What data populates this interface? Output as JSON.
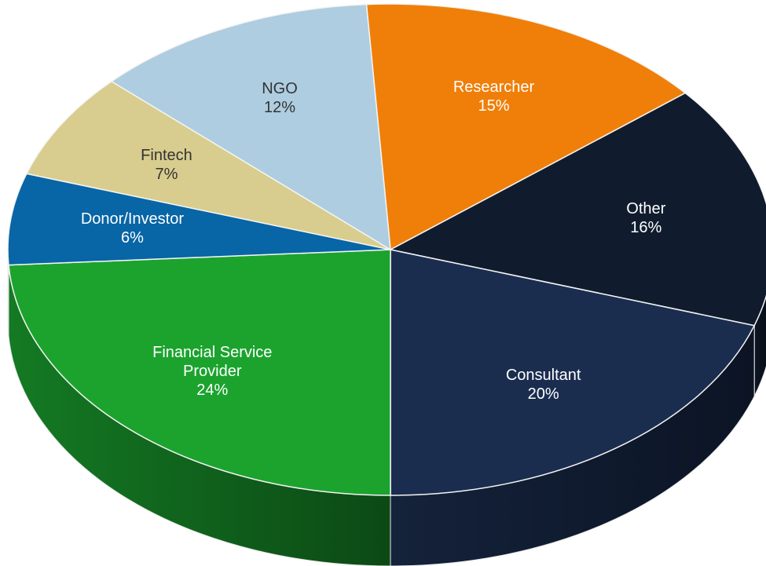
{
  "chart_data": {
    "type": "pie",
    "categories": [
      "Researcher",
      "Other",
      "Consultant",
      "Financial Service Provider",
      "Donor/Investor",
      "Fintech",
      "NGO"
    ],
    "values": [
      15,
      16,
      20,
      24,
      6,
      7,
      12
    ],
    "value_labels": [
      "15%",
      "16%",
      "20%",
      "24%",
      "6%",
      "7%",
      "12%"
    ],
    "colors": [
      "#f07f09",
      "#101c2e",
      "#1b2d4f",
      "#1ba32e",
      "#0865a6",
      "#d8cd8e",
      "#aecde0"
    ]
  }
}
